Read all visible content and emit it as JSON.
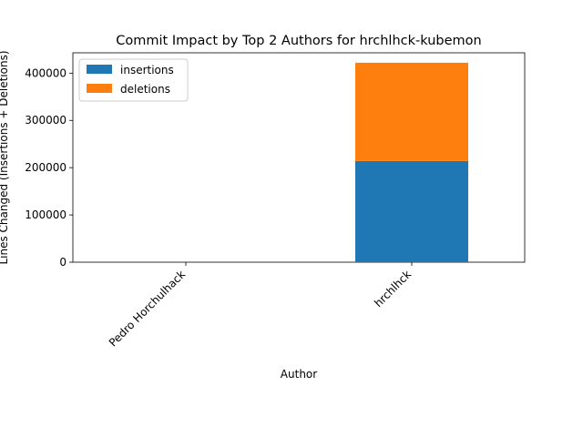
{
  "chart_data": {
    "type": "bar",
    "stacked": true,
    "title": "Commit Impact by Top 2 Authors for hrchlhck-kubemon",
    "xlabel": "Author",
    "ylabel": "Lines Changed (Insertions + Deletions)",
    "categories": [
      "Pedro Horchulhack",
      "hrchlhck"
    ],
    "series": [
      {
        "name": "insertions",
        "values": [
          0,
          214000
        ],
        "color": "#1f77b4"
      },
      {
        "name": "deletions",
        "values": [
          0,
          208000
        ],
        "color": "#ff7f0e"
      }
    ],
    "ylim": [
      0,
      443000
    ],
    "yticks": [
      0,
      100000,
      200000,
      300000,
      400000
    ],
    "ytick_labels": [
      "0",
      "100000",
      "200000",
      "300000",
      "400000"
    ],
    "grid": false,
    "legend_position": "top-left"
  }
}
